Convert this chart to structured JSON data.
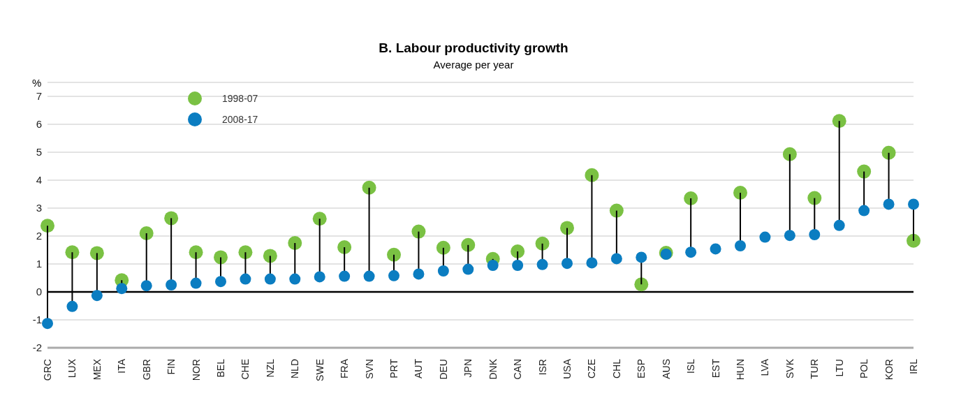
{
  "chart_data": {
    "type": "scatter",
    "title": "B. Labour productivity growth",
    "subtitle": "Average per year",
    "ylabel": "%",
    "categories": [
      "GRC",
      "LUX",
      "MEX",
      "ITA",
      "GBR",
      "FIN",
      "NOR",
      "BEL",
      "CHE",
      "NZL",
      "NLD",
      "SWE",
      "FRA",
      "SVN",
      "PRT",
      "AUT",
      "DEU",
      "JPN",
      "DNK",
      "CAN",
      "ISR",
      "USA",
      "CZE",
      "CHL",
      "ESP",
      "AUS",
      "ISL",
      "EST",
      "HUN",
      "LVA",
      "SVK",
      "TUR",
      "LTU",
      "POL",
      "KOR",
      "IRL"
    ],
    "series": [
      {
        "name": "1998-07",
        "color": "#7ac143",
        "values": [
          2.37,
          1.42,
          1.39,
          0.42,
          2.1,
          2.64,
          1.42,
          1.24,
          1.42,
          1.29,
          1.75,
          2.62,
          1.6,
          3.73,
          1.33,
          2.16,
          1.58,
          1.68,
          1.18,
          1.45,
          1.73,
          2.29,
          4.18,
          2.91,
          0.27,
          1.4,
          3.35,
          null,
          3.55,
          null,
          4.93,
          3.36,
          6.12,
          4.31,
          4.98,
          1.83
        ]
      },
      {
        "name": "2008-17",
        "color": "#0b7dc1",
        "values": [
          -1.13,
          -0.52,
          -0.13,
          0.12,
          0.22,
          0.25,
          0.31,
          0.37,
          0.46,
          0.46,
          0.46,
          0.54,
          0.56,
          0.56,
          0.58,
          0.64,
          0.75,
          0.81,
          0.95,
          0.95,
          0.98,
          1.02,
          1.04,
          1.19,
          1.24,
          1.35,
          1.42,
          1.54,
          1.65,
          1.96,
          2.02,
          2.05,
          2.38,
          2.91,
          3.14,
          3.14
        ]
      }
    ],
    "ylim": [
      -2,
      7.5
    ],
    "yticks": [
      -2,
      -1,
      0,
      1,
      2,
      3,
      4,
      5,
      6,
      7
    ],
    "grid": "y",
    "legend": "top left",
    "marker": "circle",
    "ref_lines": [
      {
        "axis": "y",
        "value": 0,
        "color": "#000000"
      }
    ]
  }
}
